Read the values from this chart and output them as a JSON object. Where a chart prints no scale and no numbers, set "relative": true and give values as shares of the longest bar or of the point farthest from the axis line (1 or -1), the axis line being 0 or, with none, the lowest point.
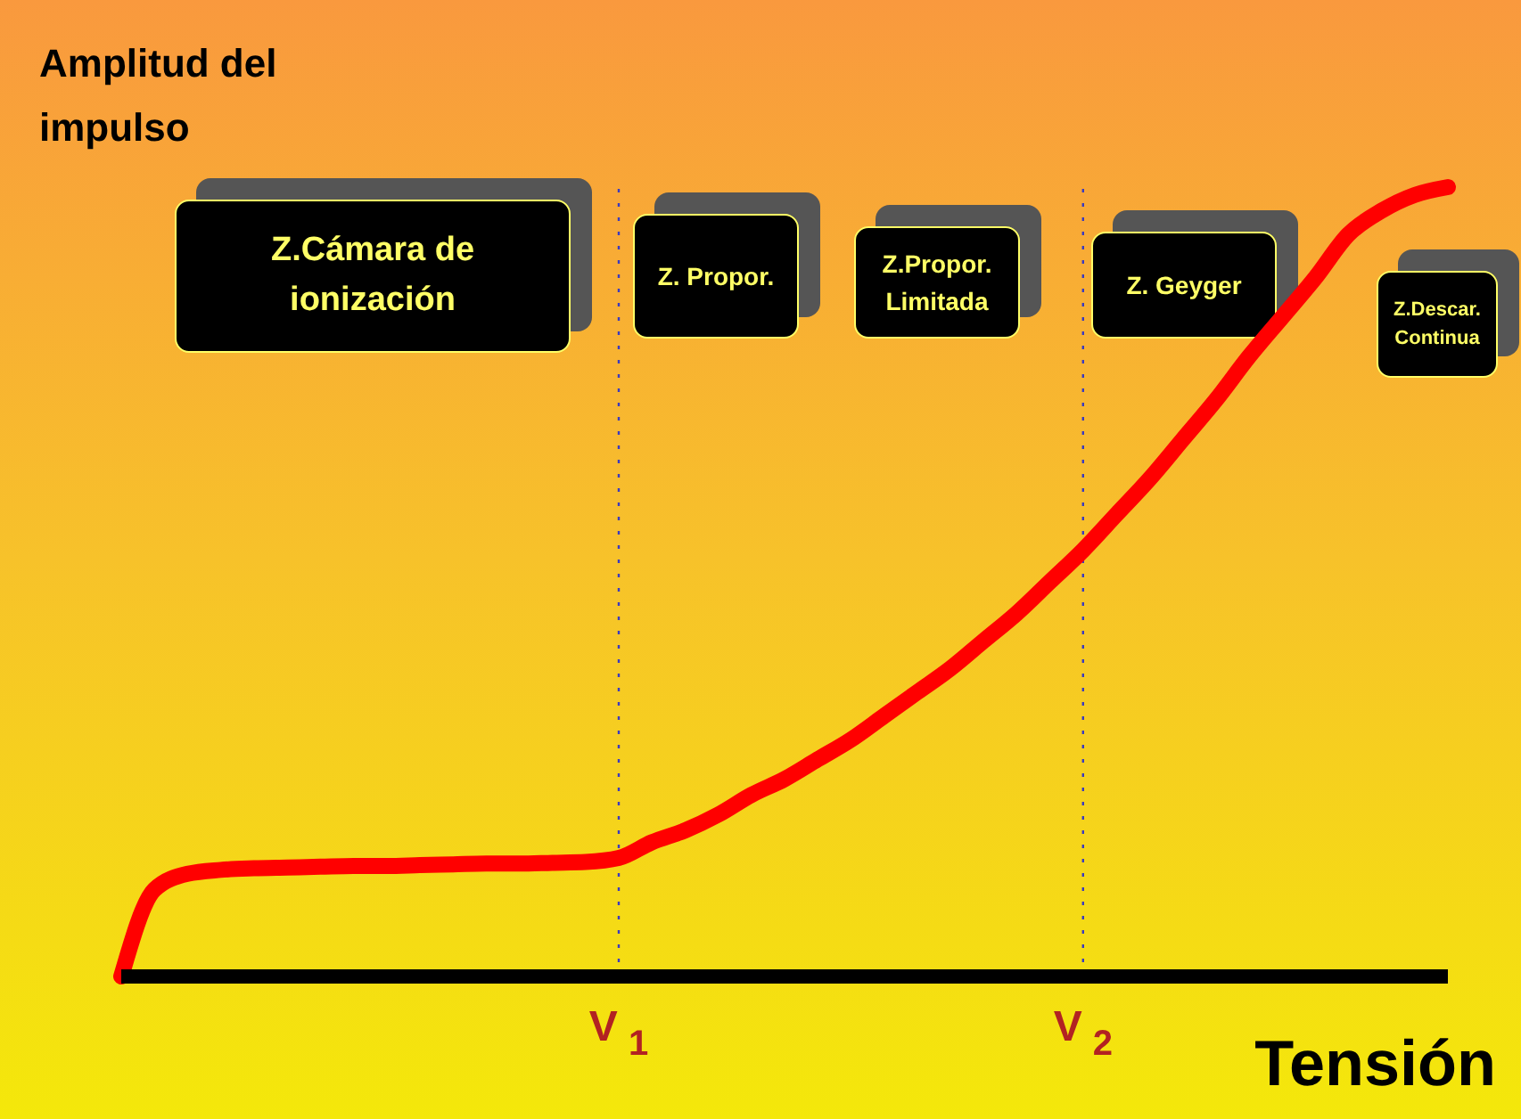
{
  "chart_data": {
    "type": "line",
    "relative": true,
    "xlabel": "Tensión",
    "ylabel": "Amplitud del impulso",
    "color": "#ff0000",
    "categories": [
      null,
      null,
      null,
      null,
      null,
      null,
      null,
      null,
      null,
      null,
      null,
      null,
      null,
      null,
      null,
      "V$_{1}$",
      null,
      null,
      null,
      null,
      null,
      null,
      null,
      null,
      null,
      null,
      null,
      null,
      null,
      "V$_{2}$",
      null,
      null,
      null,
      null,
      null,
      null,
      null,
      null,
      null,
      null,
      null
    ],
    "values": [
      0,
      0.11,
      0.13,
      0.135,
      0.137,
      0.138,
      0.139,
      0.14,
      0.14,
      0.141,
      0.142,
      0.143,
      0.143,
      0.144,
      0.145,
      0.15,
      0.17,
      0.185,
      0.205,
      0.23,
      0.25,
      0.275,
      0.3,
      0.33,
      0.36,
      0.39,
      0.425,
      0.46,
      0.5,
      0.54,
      0.585,
      0.63,
      0.68,
      0.73,
      0.785,
      0.835,
      0.885,
      0.94,
      0.97,
      0.99,
      1
    ],
    "ref_lines": [
      {
        "axis": "x",
        "value": "V$_{1}$",
        "color": "#3a3ac0",
        "line_style": "dotted"
      },
      {
        "axis": "x",
        "value": "V$_{2}$",
        "color": "#3a3ac0",
        "line_style": "dotted"
      }
    ],
    "annotations": [
      "Z.Cámara de ionización",
      "Z. Propor.",
      "Z.Propor. Limitada",
      "Z. Geyger",
      "Z.Descar. Continua"
    ]
  }
}
